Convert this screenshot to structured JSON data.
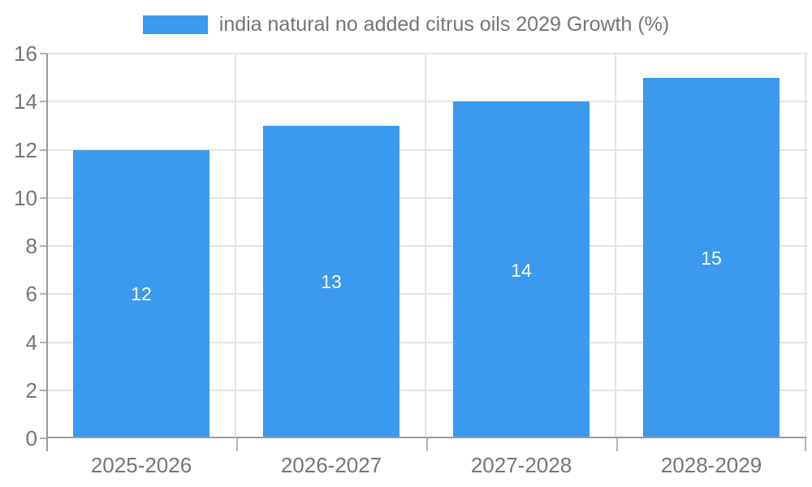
{
  "chart_data": {
    "type": "bar",
    "title": "india natural no added citrus oils 2029 Growth (%)",
    "legend": {
      "position": "top",
      "label": "india natural no added citrus oils 2029 Growth (%)"
    },
    "categories": [
      "2025-2026",
      "2026-2027",
      "2027-2028",
      "2028-2029"
    ],
    "values": [
      12,
      13,
      14,
      15
    ],
    "value_labels": [
      "12",
      "13",
      "14",
      "15"
    ],
    "xlabel": "",
    "ylabel": "",
    "ylim": [
      0,
      16
    ],
    "yticks": [
      0,
      2,
      4,
      6,
      8,
      10,
      12,
      14,
      16
    ],
    "grid": true,
    "colors": {
      "bar": "#3B99EE",
      "value_label": "#FFFFFF",
      "tick_label": "#757575",
      "legend_text": "#757575",
      "gridline": "#E4E4E4",
      "axis_line": "#9A9A9A",
      "tick_mark": "#B5B5B5",
      "background": "#FFFFFF"
    }
  }
}
